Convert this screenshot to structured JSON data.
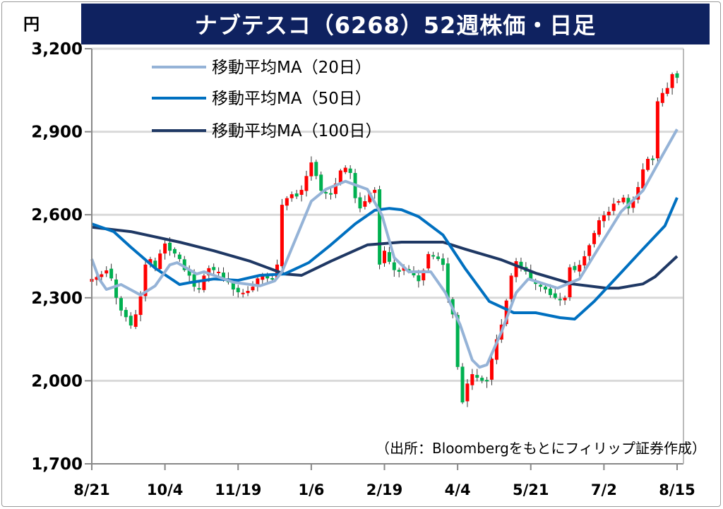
{
  "chart_data": {
    "type": "candlestick",
    "title": "ナブテスコ（6268）52週株価・日足",
    "ylabel": "円",
    "ylim": [
      1700,
      3200
    ],
    "yticks": [
      1700,
      2000,
      2300,
      2600,
      2900,
      3200
    ],
    "ytick_labels": [
      "1,700",
      "2,000",
      "2,300",
      "2,600",
      "2,900",
      "3,200"
    ],
    "x_range_days": [
      0,
      240
    ],
    "xticks": [
      {
        "day": 0,
        "label": "8/21"
      },
      {
        "day": 30,
        "label": "10/4"
      },
      {
        "day": 60,
        "label": "11/19"
      },
      {
        "day": 90,
        "label": "1/6"
      },
      {
        "day": 120,
        "label": "2/19"
      },
      {
        "day": 150,
        "label": "4/4"
      },
      {
        "day": 180,
        "label": "5/21"
      },
      {
        "day": 210,
        "label": "7/2"
      },
      {
        "day": 240,
        "label": "8/15"
      }
    ],
    "grid": true,
    "legend_position": "top-left",
    "candle_step_days": 2,
    "close": [
      2368,
      2375,
      2385,
      2399,
      2370,
      2300,
      2254,
      2230,
      2200,
      2240,
      2305,
      2420,
      2440,
      2407,
      2460,
      2496,
      2470,
      2460,
      2440,
      2400,
      2380,
      2340,
      2330,
      2380,
      2407,
      2400,
      2394,
      2370,
      2356,
      2330,
      2320,
      2318,
      2325,
      2340,
      2370,
      2381,
      2370,
      2368,
      2420,
      2636,
      2660,
      2674,
      2666,
      2690,
      2740,
      2789,
      2740,
      2687,
      2680,
      2674,
      2713,
      2760,
      2770,
      2751,
      2660,
      2623,
      2649,
      2680,
      2690,
      2420,
      2470,
      2430,
      2400,
      2394,
      2410,
      2400,
      2381,
      2360,
      2400,
      2458,
      2450,
      2440,
      2419,
      2300,
      2240,
      2050,
      1922,
      1990,
      2024,
      2011,
      2000,
      1998,
      2080,
      2150,
      2203,
      2290,
      2380,
      2432,
      2410,
      2395,
      2368,
      2350,
      2340,
      2330,
      2310,
      2300,
      2292,
      2300,
      2410,
      2400,
      2419,
      2450,
      2490,
      2534,
      2580,
      2598,
      2611,
      2640,
      2649,
      2662,
      2623,
      2650,
      2700,
      2764,
      2802,
      2800,
      3010,
      3040,
      3058,
      3108,
      3095
    ],
    "up_color": "#ff0000",
    "down_color": "#00b050",
    "series": [
      {
        "name": "移動平均MA（20日）",
        "color": "#95b3d7",
        "points": [
          [
            0,
            2440
          ],
          [
            3,
            2368
          ],
          [
            6,
            2330
          ],
          [
            12,
            2348
          ],
          [
            20,
            2310
          ],
          [
            26,
            2343
          ],
          [
            32,
            2419
          ],
          [
            35,
            2427
          ],
          [
            43,
            2386
          ],
          [
            46,
            2394
          ],
          [
            58,
            2356
          ],
          [
            69,
            2343
          ],
          [
            75,
            2361
          ],
          [
            78,
            2394
          ],
          [
            84,
            2521
          ],
          [
            90,
            2649
          ],
          [
            96,
            2692
          ],
          [
            104,
            2721
          ],
          [
            113,
            2692
          ],
          [
            119,
            2598
          ],
          [
            124,
            2445
          ],
          [
            130,
            2394
          ],
          [
            139,
            2394
          ],
          [
            145,
            2318
          ],
          [
            151,
            2203
          ],
          [
            156,
            2075
          ],
          [
            159,
            2049
          ],
          [
            162,
            2058
          ],
          [
            168,
            2177
          ],
          [
            174,
            2318
          ],
          [
            179,
            2368
          ],
          [
            191,
            2335
          ],
          [
            200,
            2368
          ],
          [
            208,
            2483
          ],
          [
            217,
            2611
          ],
          [
            226,
            2687
          ],
          [
            234,
            2815
          ],
          [
            240,
            2909
          ]
        ]
      },
      {
        "name": "移動平均MA（50日）",
        "color": "#0070c0",
        "points": [
          [
            0,
            2567
          ],
          [
            9,
            2539
          ],
          [
            16,
            2483
          ],
          [
            26,
            2407
          ],
          [
            36,
            2348
          ],
          [
            41,
            2356
          ],
          [
            50,
            2368
          ],
          [
            60,
            2363
          ],
          [
            69,
            2381
          ],
          [
            79,
            2386
          ],
          [
            89,
            2427
          ],
          [
            98,
            2491
          ],
          [
            108,
            2567
          ],
          [
            116,
            2616
          ],
          [
            122,
            2623
          ],
          [
            127,
            2618
          ],
          [
            134,
            2593
          ],
          [
            144,
            2527
          ],
          [
            153,
            2407
          ],
          [
            163,
            2287
          ],
          [
            173,
            2246
          ],
          [
            182,
            2246
          ],
          [
            192,
            2228
          ],
          [
            198,
            2223
          ],
          [
            206,
            2287
          ],
          [
            216,
            2381
          ],
          [
            226,
            2476
          ],
          [
            235,
            2560
          ],
          [
            240,
            2662
          ]
        ]
      },
      {
        "name": "移動平均MA（100日）",
        "color": "#1f3864",
        "points": [
          [
            0,
            2555
          ],
          [
            16,
            2539
          ],
          [
            36,
            2501
          ],
          [
            50,
            2470
          ],
          [
            65,
            2432
          ],
          [
            79,
            2386
          ],
          [
            86,
            2381
          ],
          [
            98,
            2432
          ],
          [
            113,
            2491
          ],
          [
            127,
            2501
          ],
          [
            144,
            2501
          ],
          [
            153,
            2476
          ],
          [
            168,
            2437
          ],
          [
            182,
            2389
          ],
          [
            197,
            2350
          ],
          [
            211,
            2335
          ],
          [
            216,
            2335
          ],
          [
            226,
            2350
          ],
          [
            231,
            2376
          ],
          [
            240,
            2450
          ]
        ]
      }
    ],
    "annotation": "（出所：Bloombergをもとにフィリップ証券作成）"
  }
}
